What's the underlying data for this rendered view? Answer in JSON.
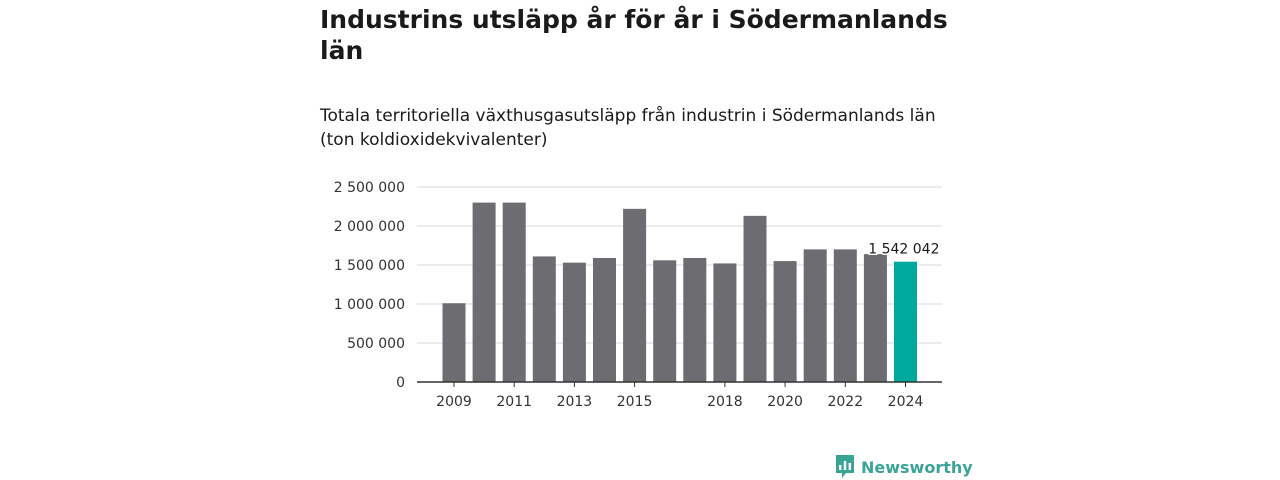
{
  "title": "Industrins utsläpp år för år i Södermanlands län",
  "subtitle": "Totala territoriella växthusgasutsläpp från industrin i Södermanlands län (ton koldioxidekvivalenter)",
  "brand": {
    "name": "Newsworthy",
    "logo_icon": "newsworthy-logo-icon",
    "color": "#3aa597"
  },
  "colors": {
    "bar": "#6d6c71",
    "highlight": "#00a99d",
    "grid": "#d9d9d9",
    "axis": "#333333"
  },
  "chart_data": {
    "type": "bar",
    "title": "Industrins utsläpp år för år i Södermanlands län",
    "subtitle": "Totala territoriella växthusgasutsläpp från industrin i Södermanlands län (ton koldioxidekvivalenter)",
    "categories": [
      "2009",
      "2010",
      "2011",
      "2012",
      "2013",
      "2014",
      "2015",
      "2016",
      "2017",
      "2018",
      "2019",
      "2020",
      "2021",
      "2022",
      "2023",
      "2024"
    ],
    "values": [
      1010000,
      2300000,
      2300000,
      1610000,
      1530000,
      1590000,
      2220000,
      1560000,
      1590000,
      1520000,
      2130000,
      1550000,
      1700000,
      1700000,
      1640000,
      1542042
    ],
    "highlight_index": 15,
    "data_labels": [
      {
        "index": 15,
        "text": "1 542 042"
      }
    ],
    "ylim": [
      0,
      2500000
    ],
    "yticks": [
      {
        "value": 0,
        "label": "0"
      },
      {
        "value": 500000,
        "label": "500 000"
      },
      {
        "value": 1000000,
        "label": "1 000 000"
      },
      {
        "value": 1500000,
        "label": "1 500 000"
      },
      {
        "value": 2000000,
        "label": "2 000 000"
      },
      {
        "value": 2500000,
        "label": "2 500 000"
      }
    ],
    "xticks": [
      {
        "index": 0,
        "label": "2009"
      },
      {
        "index": 2,
        "label": "2011"
      },
      {
        "index": 4,
        "label": "2013"
      },
      {
        "index": 6,
        "label": "2015"
      },
      {
        "index": 9,
        "label": "2018"
      },
      {
        "index": 11,
        "label": "2020"
      },
      {
        "index": 13,
        "label": "2022"
      },
      {
        "index": 15,
        "label": "2024"
      }
    ],
    "grid": true
  }
}
